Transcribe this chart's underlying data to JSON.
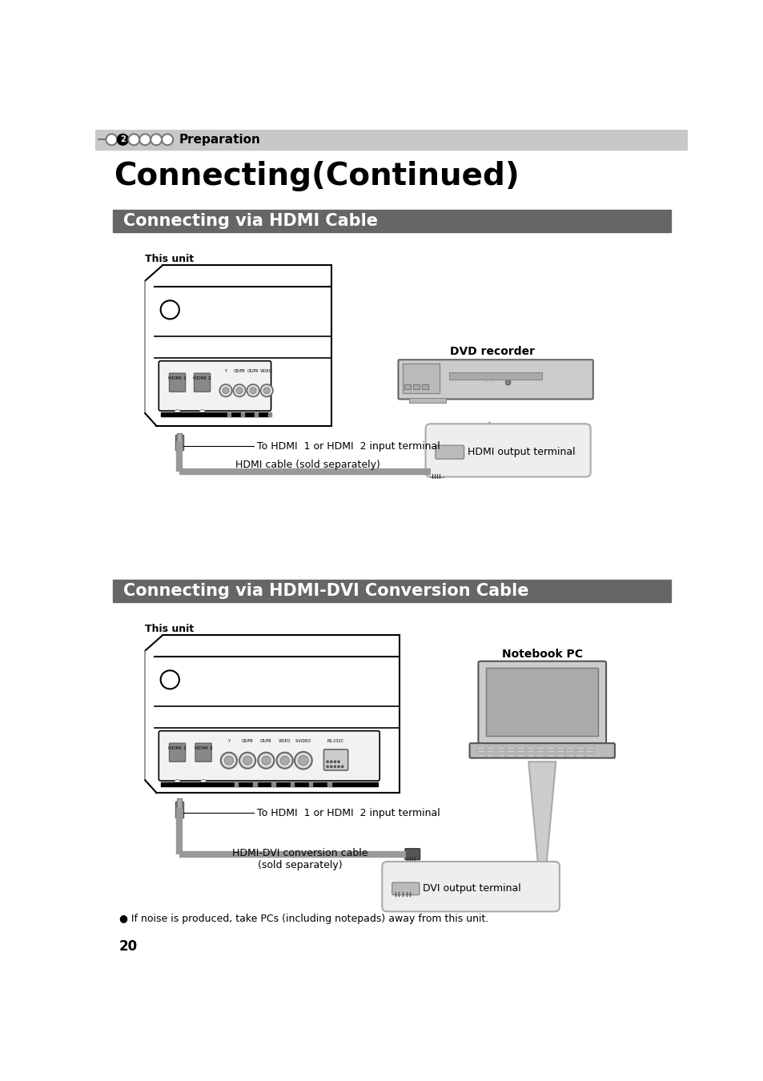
{
  "title": "Connecting(Continued)",
  "section1_title": "Connecting via HDMI Cable",
  "section2_title": "Connecting via HDMI-DVI Conversion Cable",
  "header_text": "Preparation",
  "page_number": "20",
  "this_unit_label": "This unit",
  "dvd_recorder_label": "DVD recorder",
  "notebook_pc_label": "Notebook PC",
  "hdmi_input_label": "To HDMI  1 or HDMI  2 input terminal",
  "hdmi_cable_label": "HDMI cable (sold separately)",
  "hdmi_output_label": "HDMI output terminal",
  "hdmi_dvi_cable_label": "HDMI-DVI conversion cable\n(sold separately)",
  "dvi_output_label": "DVI output terminal",
  "note_text": "● If noise is produced, take PCs (including notepads) away from this unit.",
  "bg_color": "#ffffff",
  "header_bg": "#c8c8c8",
  "section_bg": "#666666",
  "section_text_color": "#ffffff",
  "light_gray": "#cccccc",
  "mid_gray": "#999999",
  "dark_gray": "#555555"
}
